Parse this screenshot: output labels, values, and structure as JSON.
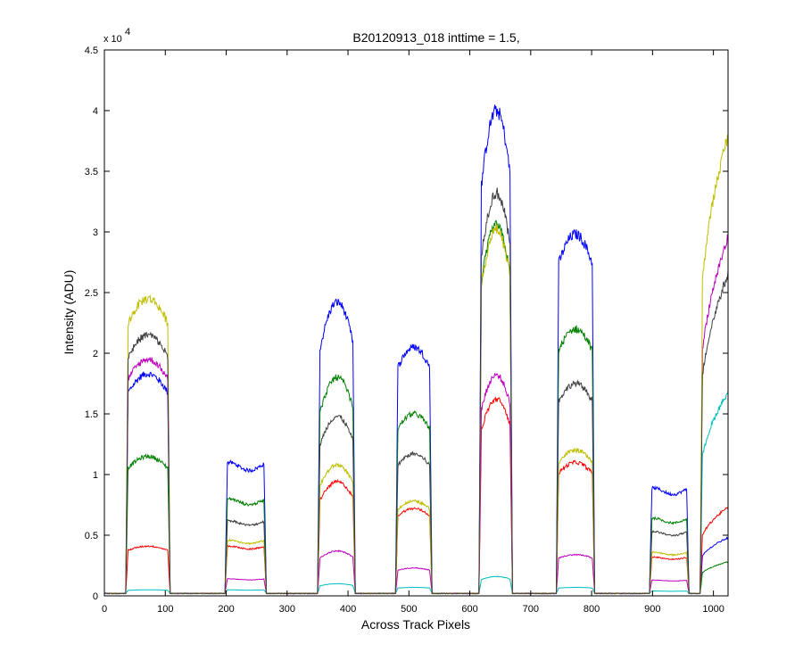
{
  "chart_data": {
    "type": "line",
    "title": "B20120913_018 inttime = 1.5,",
    "xlabel": "Across Track Pixels",
    "ylabel": "Intensity (ADU)",
    "y_exponent_label": "x 10",
    "y_exponent_power": "4",
    "xlim": [
      0,
      1024
    ],
    "ylim": [
      0,
      45000
    ],
    "x_ticks": [
      0,
      100,
      200,
      300,
      400,
      500,
      600,
      700,
      800,
      900,
      1000
    ],
    "x_tick_labels": [
      "0",
      "100",
      "200",
      "300",
      "400",
      "500",
      "600",
      "700",
      "800",
      "900",
      "1000"
    ],
    "y_ticks": [
      0,
      5000,
      10000,
      15000,
      20000,
      25000,
      30000,
      35000,
      40000,
      45000
    ],
    "y_tick_labels": [
      "0",
      "0.5",
      "1",
      "1.5",
      "2",
      "2.5",
      "3",
      "3.5",
      "4",
      "4.5"
    ],
    "grid": false,
    "legend": "none",
    "segments": [
      {
        "x0": 35,
        "x1": 108,
        "shape": "dome"
      },
      {
        "x0": 198,
        "x1": 266,
        "shape": "flat"
      },
      {
        "x0": 350,
        "x1": 412,
        "shape": "peak"
      },
      {
        "x0": 478,
        "x1": 538,
        "shape": "dome"
      },
      {
        "x0": 615,
        "x1": 670,
        "shape": "peak"
      },
      {
        "x0": 742,
        "x1": 805,
        "shape": "dome"
      },
      {
        "x0": 895,
        "x1": 960,
        "shape": "flat"
      },
      {
        "x0": 978,
        "x1": 1024,
        "shape": "rise"
      }
    ],
    "series": [
      {
        "color": "#0000ff",
        "peaks": [
          18300,
          11000,
          24200,
          20500,
          40000,
          29800,
          8900,
          4800
        ]
      },
      {
        "color": "#008000",
        "peaks": [
          11500,
          8000,
          18000,
          15000,
          30500,
          22000,
          6400,
          2800
        ]
      },
      {
        "color": "#ff0000",
        "peaks": [
          4100,
          4100,
          9400,
          7200,
          16200,
          11000,
          3200,
          7300
        ]
      },
      {
        "color": "#00bfbf",
        "peaks": [
          500,
          500,
          1000,
          700,
          1600,
          700,
          400,
          16800
        ]
      },
      {
        "color": "#bf00bf",
        "peaks": [
          19500,
          1400,
          3700,
          2300,
          18200,
          3400,
          1300,
          29500
        ]
      },
      {
        "color": "#bfbf00",
        "peaks": [
          24500,
          4600,
          10800,
          7800,
          30200,
          12000,
          3600,
          38000
        ]
      },
      {
        "color": "#404040",
        "peaks": [
          21500,
          6200,
          14800,
          11700,
          33200,
          17500,
          5300,
          26500
        ]
      }
    ]
  }
}
